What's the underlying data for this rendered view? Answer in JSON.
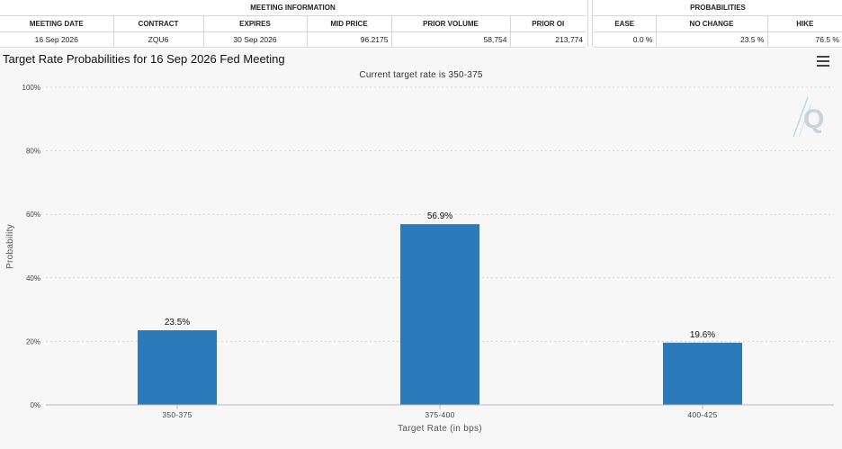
{
  "meeting_information": {
    "section_title": "MEETING INFORMATION",
    "headers": [
      "MEETING DATE",
      "CONTRACT",
      "EXPIRES",
      "MID PRICE",
      "PRIOR VOLUME",
      "PRIOR OI"
    ],
    "values": [
      "16 Sep 2026",
      "ZQU6",
      "30 Sep 2026",
      "96.2175",
      "58,754",
      "213,774"
    ]
  },
  "probabilities": {
    "section_title": "PROBABILITIES",
    "headers": [
      "EASE",
      "NO CHANGE",
      "HIKE"
    ],
    "values": [
      "0.0 %",
      "23.5 %",
      "76.5 %"
    ]
  },
  "menu_icon": "hamburger-menu-icon",
  "watermark_icon": "q-logo-icon",
  "colors": {
    "bar": "#2b7bba",
    "panel": "#f7f7f7",
    "grid": "#d9d9d9"
  },
  "chart_data": {
    "type": "bar",
    "title": "Target Rate Probabilities for 16 Sep 2026 Fed Meeting",
    "subtitle": "Current target rate is 350-375",
    "xlabel": "Target Rate (in bps)",
    "ylabel": "Probability",
    "categories": [
      "350-375",
      "375-400",
      "400-425"
    ],
    "values": [
      23.5,
      56.9,
      19.6
    ],
    "data_labels": [
      "23.5%",
      "56.9%",
      "19.6%"
    ],
    "ylim": [
      0,
      100
    ],
    "yticks": [
      0,
      20,
      40,
      60,
      80,
      100
    ],
    "ytick_labels": [
      "0%",
      "20%",
      "40%",
      "60%",
      "80%",
      "100%"
    ],
    "grid": true,
    "legend": "none"
  }
}
